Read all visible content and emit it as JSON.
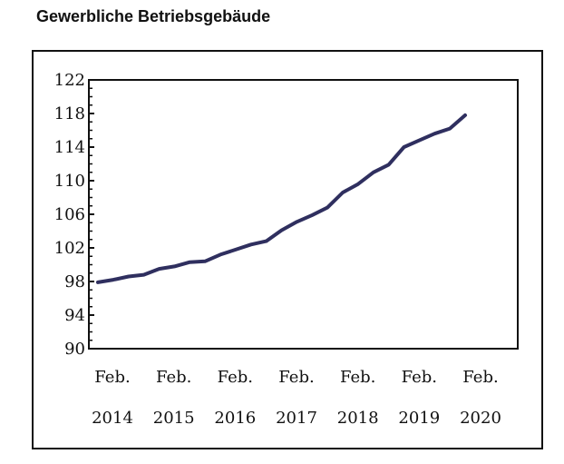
{
  "chart_data": {
    "type": "line",
    "title": "Gewerbliche Betriebsgebäude",
    "xlabel": "",
    "ylabel": "",
    "ylim": [
      90,
      122
    ],
    "y_ticks": [
      90,
      94,
      98,
      102,
      106,
      110,
      114,
      118,
      122
    ],
    "x_tick_labels": [
      {
        "line1": "Feb.",
        "line2": "2014"
      },
      {
        "line1": "Feb.",
        "line2": "2015"
      },
      {
        "line1": "Feb.",
        "line2": "2016"
      },
      {
        "line1": "Feb.",
        "line2": "2017"
      },
      {
        "line1": "Feb.",
        "line2": "2018"
      },
      {
        "line1": "Feb.",
        "line2": "2019"
      },
      {
        "line1": "Feb.",
        "line2": "2020"
      }
    ],
    "line_color": "#2f2f5f",
    "series": [
      {
        "x": [
          "2014-02",
          "2014-05",
          "2014-08",
          "2014-11",
          "2015-02",
          "2015-05",
          "2015-08",
          "2015-11",
          "2016-02",
          "2016-05",
          "2016-08",
          "2016-11",
          "2017-02",
          "2017-05",
          "2017-08",
          "2017-11",
          "2018-02",
          "2018-05",
          "2018-08",
          "2018-11",
          "2019-02",
          "2019-05",
          "2019-08",
          "2019-11",
          "2020-02"
        ],
        "values": [
          97.9,
          98.2,
          98.6,
          98.8,
          99.5,
          99.8,
          100.3,
          100.4,
          101.2,
          101.8,
          102.4,
          102.8,
          104.1,
          105.1,
          105.9,
          106.8,
          108.6,
          109.6,
          111.0,
          111.9,
          114.0,
          114.8,
          115.6,
          116.2,
          117.8
        ]
      }
    ]
  }
}
